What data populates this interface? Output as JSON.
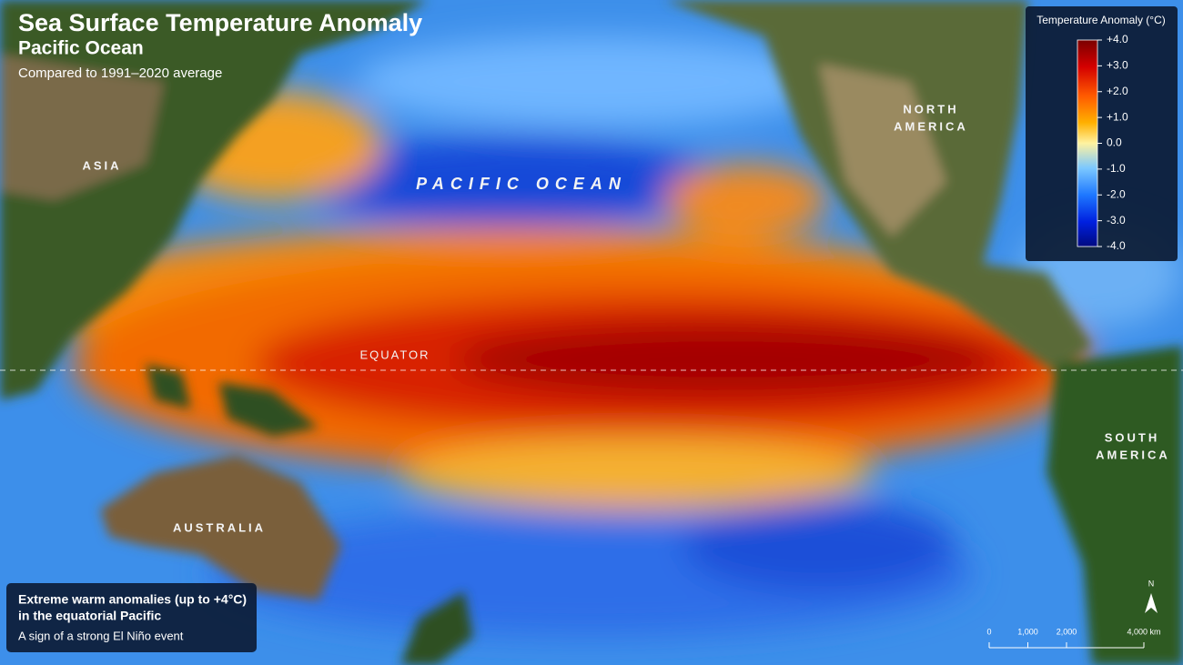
{
  "header": {
    "title": "Sea Surface Temperature Anomaly",
    "subtitle": "Pacific Ocean",
    "note": "Compared to 1991–2020 average"
  },
  "labels": {
    "asia": "ASIA",
    "north_america": [
      "NORTH",
      "AMERICA"
    ],
    "south_america": [
      "SOUTH",
      "AMERICA"
    ],
    "australia": "AUSTRALIA",
    "ocean": "PACIFIC OCEAN",
    "equator": "EQUATOR"
  },
  "legend": {
    "title": "Temperature Anomaly (°C)",
    "range": [
      -4,
      4
    ],
    "ticks": [
      {
        "value": 4,
        "label": "+4.0"
      },
      {
        "value": 3,
        "label": "+3.0"
      },
      {
        "value": 2,
        "label": "+2.0"
      },
      {
        "value": 1,
        "label": "+1.0"
      },
      {
        "value": 0,
        "label": "0.0"
      },
      {
        "value": -1,
        "label": "-1.0"
      },
      {
        "value": -2,
        "label": "-2.0"
      },
      {
        "value": -3,
        "label": "-3.0"
      },
      {
        "value": -4,
        "label": "-4.0"
      }
    ]
  },
  "info": {
    "title": [
      "Extreme warm anomalies (up to +4°C)",
      "in the equatorial Pacific"
    ],
    "text": "A sign of a strong El Niño event"
  },
  "scale": {
    "north": "N",
    "range": [
      0,
      4000
    ],
    "ticks": [
      0,
      {
        "value": 1000,
        "label": "1,000"
      },
      {
        "value": 2000,
        "label": "2,000"
      },
      {
        "value": 4000,
        "label": "4,000 km"
      }
    ]
  }
}
